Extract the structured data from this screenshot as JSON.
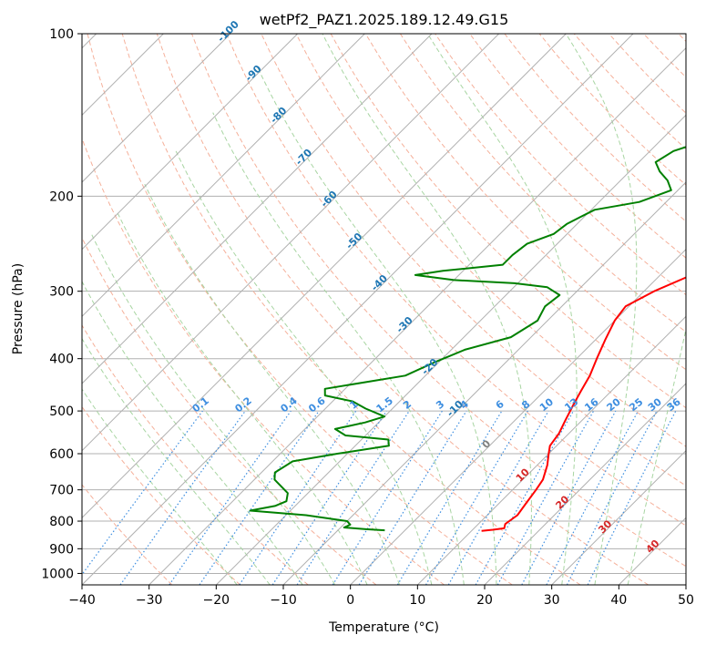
{
  "chart_data": {
    "type": "line",
    "subtype": "skew-T log-P diagram",
    "title": "wetPf2_PAZ1.2025.189.12.49.G15",
    "xlabel": "Temperature (°C)",
    "ylabel": "Pressure (hPa)",
    "xlim": [
      -40,
      50
    ],
    "ylim": [
      1050,
      100
    ],
    "y_scale": "log",
    "grid": true,
    "x_ticks": [
      -40,
      -30,
      -20,
      -10,
      0,
      10,
      20,
      30,
      40,
      50
    ],
    "y_ticks": [
      100,
      200,
      300,
      400,
      500,
      600,
      700,
      800,
      900,
      1000
    ],
    "x_tick_labels": [
      "−40",
      "−30",
      "−20",
      "−10",
      "0",
      "10",
      "20",
      "30",
      "40",
      "50"
    ],
    "y_tick_labels": [
      "100",
      "200",
      "300",
      "400",
      "500",
      "600",
      "700",
      "800",
      "900",
      "1000"
    ],
    "colors": {
      "temperature": "#ff0000",
      "dewpoint": "#008000",
      "isotherm": "#b0b0b0",
      "dry_adiabat": "#f5b09a",
      "moist_adiabat": "#a8d5a2",
      "mixing_ratio": "#3d8ee0",
      "label_blue": "#1f77b4",
      "label_red": "#d62728",
      "label_mixing": "#3d8ee0",
      "label_gray": "#808080"
    },
    "isotherm_labels": [
      {
        "value": -100,
        "text": "-100"
      },
      {
        "value": -90,
        "text": "-90"
      },
      {
        "value": -80,
        "text": "-80"
      },
      {
        "value": -70,
        "text": "-70"
      },
      {
        "value": -60,
        "text": "-60"
      },
      {
        "value": -50,
        "text": "-50"
      },
      {
        "value": -40,
        "text": "-40"
      },
      {
        "value": -30,
        "text": "-30"
      },
      {
        "value": -20,
        "text": "-20"
      },
      {
        "value": -10,
        "text": "-10"
      },
      {
        "value": 0,
        "text": "0"
      },
      {
        "value": 10,
        "text": "10"
      },
      {
        "value": 20,
        "text": "20"
      },
      {
        "value": 30,
        "text": "30"
      },
      {
        "value": 40,
        "text": "40"
      }
    ],
    "mixing_ratio_labels": [
      "0.1",
      "0.2",
      "0.4",
      "0.6",
      "1",
      "1.5",
      "2",
      "3",
      "4",
      "6",
      "8",
      "10",
      "13",
      "16",
      "20",
      "25",
      "30",
      "36"
    ],
    "series": [
      {
        "name": "Temperature",
        "points": [
          [
            18.5,
            100
          ],
          [
            17.5,
            110
          ],
          [
            17.3,
            125
          ],
          [
            16.8,
            150
          ],
          [
            15.5,
            165
          ],
          [
            13.0,
            180
          ],
          [
            11.7,
            190
          ],
          [
            11.5,
            200
          ],
          [
            11.0,
            215
          ],
          [
            9.5,
            235
          ],
          [
            7.5,
            255
          ],
          [
            5.0,
            278
          ],
          [
            1.5,
            300
          ],
          [
            -0.5,
            320
          ],
          [
            0.0,
            340
          ],
          [
            1.5,
            370
          ],
          [
            3.0,
            400
          ],
          [
            4.5,
            430
          ],
          [
            5.5,
            460
          ],
          [
            6.5,
            490
          ],
          [
            7.5,
            520
          ],
          [
            8.5,
            550
          ],
          [
            9.0,
            580
          ],
          [
            10.0,
            600
          ],
          [
            11.5,
            630
          ],
          [
            13.0,
            670
          ],
          [
            13.5,
            700
          ],
          [
            14.0,
            740
          ],
          [
            14.5,
            780
          ],
          [
            14.0,
            810
          ],
          [
            14.5,
            825
          ],
          [
            13.0,
            830
          ],
          [
            11.5,
            834
          ]
        ]
      },
      {
        "name": "Dewpoint",
        "points": [
          [
            -0.5,
            100
          ],
          [
            -1.5,
            110
          ],
          [
            -3.5,
            122
          ],
          [
            -7.5,
            140
          ],
          [
            -12.0,
            155
          ],
          [
            -16.5,
            165
          ],
          [
            -17.5,
            173
          ],
          [
            -15.5,
            180
          ],
          [
            -13.0,
            187
          ],
          [
            -11.0,
            195
          ],
          [
            -14.0,
            205
          ],
          [
            -19.5,
            212
          ],
          [
            -21.5,
            225
          ],
          [
            -22.0,
            235
          ],
          [
            -24.5,
            245
          ],
          [
            -25.0,
            257
          ],
          [
            -25.0,
            268
          ],
          [
            -33.0,
            275
          ],
          [
            -36.5,
            280
          ],
          [
            -30.0,
            286
          ],
          [
            -20.5,
            290
          ],
          [
            -15.0,
            295
          ],
          [
            -12.0,
            305
          ],
          [
            -12.5,
            320
          ],
          [
            -11.5,
            340
          ],
          [
            -13.0,
            365
          ],
          [
            -18.0,
            385
          ],
          [
            -20.5,
            405
          ],
          [
            -23.0,
            430
          ],
          [
            -33.0,
            455
          ],
          [
            -32.0,
            468
          ],
          [
            -27.0,
            480
          ],
          [
            -24.0,
            495
          ],
          [
            -20.0,
            512
          ],
          [
            -22.0,
            525
          ],
          [
            -25.5,
            540
          ],
          [
            -23.0,
            555
          ],
          [
            -16.0,
            565
          ],
          [
            -15.0,
            580
          ],
          [
            -21.5,
            600
          ],
          [
            -27.0,
            620
          ],
          [
            -28.0,
            650
          ],
          [
            -27.0,
            670
          ],
          [
            -23.0,
            710
          ],
          [
            -22.0,
            735
          ],
          [
            -23.0,
            750
          ],
          [
            -26.0,
            765
          ],
          [
            -17.0,
            780
          ],
          [
            -10.0,
            800
          ],
          [
            -9.0,
            812
          ],
          [
            -9.5,
            822
          ],
          [
            -6.0,
            828
          ],
          [
            -3.0,
            832
          ]
        ]
      }
    ]
  }
}
